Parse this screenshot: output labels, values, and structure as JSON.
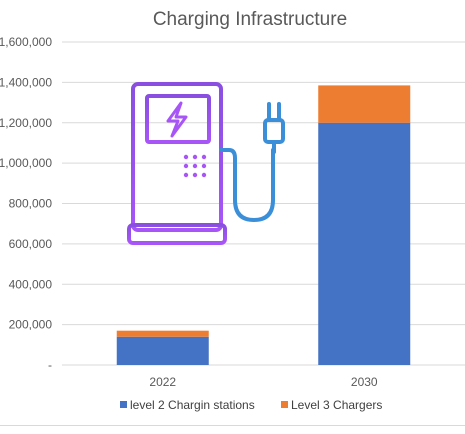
{
  "chart_data": {
    "type": "bar",
    "stacked": true,
    "title": "Charging Infrastructure",
    "categories": [
      "2022",
      "2030"
    ],
    "series": [
      {
        "name": "level 2 Chargin stations",
        "values": [
          140000,
          1200000
        ],
        "color": "#4472C4"
      },
      {
        "name": "Level 3 Chargers",
        "values": [
          30000,
          185000
        ],
        "color": "#ED7D31"
      }
    ],
    "y_ticks": [
      "-",
      "200,000",
      "400,000",
      "600,000",
      "800,000",
      "1,000,000",
      "1,200,000",
      "1,400,000",
      "1,600,000"
    ],
    "ylim": [
      0,
      1600000
    ],
    "grid": true,
    "legend": "bottom",
    "icon": "ev-charging-station-icon"
  }
}
